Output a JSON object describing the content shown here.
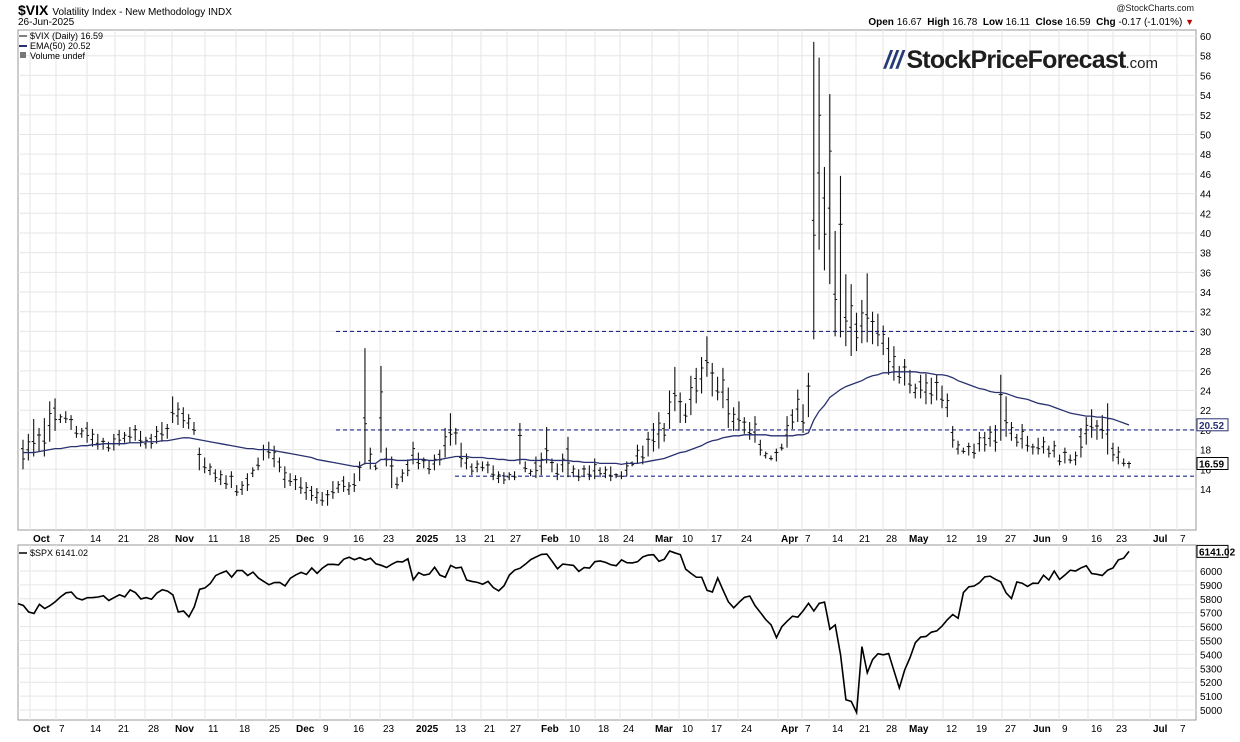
{
  "header": {
    "symbol": "$VIX",
    "name": "Volatility Index - New Methodology",
    "exchange": "INDX",
    "date": "26-Jun-2025",
    "copyright": "@StockCharts.com",
    "open_label": "Open",
    "open": "16.67",
    "high_label": "High",
    "high": "16.78",
    "low_label": "Low",
    "low": "16.11",
    "close_label": "Close",
    "close": "16.59",
    "chg_label": "Chg",
    "chg": "-0.17 (-1.01%)"
  },
  "legend": {
    "vix": "$VIX (Daily) 16.59",
    "ema": "EMA(50) 20.52",
    "volume": "Volume undef",
    "spx": "$SPX 6141.02"
  },
  "logo": {
    "main": "StockPriceForecast",
    "suffix": ".com"
  },
  "colors": {
    "ema": "#2a3170",
    "hline": "#1f2a8a",
    "bars": "#111111",
    "grid": "#e6e6e6",
    "badge_vix": "#000000",
    "badge_ema": "#2a3170",
    "down_arrow": "#c00000"
  },
  "chart_data": [
    {
      "type": "ohlc",
      "title": "$VIX (Daily) 16.59",
      "ylim": [
        12,
        60
      ],
      "yticks": [
        14,
        16,
        18,
        20,
        22,
        24,
        26,
        28,
        30,
        32,
        34,
        36,
        38,
        40,
        42,
        44,
        46,
        48,
        50,
        52,
        54,
        56,
        58,
        60
      ],
      "xtick_labels": [
        "Oct",
        "7",
        "14",
        "21",
        "28",
        "Nov",
        "11",
        "18",
        "25",
        "Dec",
        "9",
        "16",
        "23",
        "2025",
        "13",
        "21",
        "27",
        "Feb",
        "10",
        "18",
        "24",
        "Mar",
        "10",
        "17",
        "24",
        "Apr",
        "7",
        "14",
        "21",
        "28",
        "May",
        "12",
        "19",
        "27",
        "Jun",
        "9",
        "16",
        "23",
        "Jul",
        "7"
      ],
      "last_value": 16.59,
      "ema_value": 20.52,
      "horizontal_lines": [
        30,
        20,
        15.3
      ],
      "series": [
        {
          "name": "$VIX",
          "hi": [
            19.0,
            19.6,
            21.1,
            20.2,
            21.2,
            22.9,
            23.2,
            21.6,
            21.9,
            21.5,
            20.4,
            20.2,
            20.8,
            20.1,
            19.6,
            19.2,
            18.8,
            19.6,
            20.0,
            19.8,
            20.3,
            20.5,
            19.9,
            19.3,
            19.6,
            20.4,
            20.8,
            20.6,
            23.4,
            22.8,
            22.3,
            21.6,
            20.8,
            18.2,
            17.2,
            16.6,
            16.0,
            15.9,
            15.4,
            15.8,
            14.4,
            14.8,
            15.6,
            16.2,
            17.2,
            18.5,
            18.8,
            18.4,
            17.2,
            16.3,
            15.6,
            15.4,
            15.2,
            14.7,
            14.3,
            14.1,
            13.7,
            13.9,
            14.8,
            14.8,
            15.3,
            14.7,
            15.6,
            16.8,
            28.3,
            18.2,
            16.5,
            26.5,
            18.2,
            17.3,
            15.2,
            16.0,
            17.0,
            18.8,
            17.7,
            17.2,
            16.9,
            17.5,
            18.0,
            20.2,
            21.7,
            20.2,
            18.7,
            17.6,
            16.6,
            16.9,
            16.8,
            16.8,
            16.4,
            15.8,
            15.7,
            15.7,
            15.8,
            20.7,
            16.8,
            16.0,
            17.3,
            17.7,
            20.3,
            17.1,
            16.6,
            17.6,
            19.3,
            16.4,
            16.0,
            16.4,
            16.4,
            17.1,
            16.2,
            16.3,
            16.3,
            15.6,
            15.8,
            16.8,
            16.8,
            18.5,
            18.4,
            19.8,
            20.7,
            21.8,
            20.7,
            24.0,
            26.4,
            23.8,
            22.7,
            25.5,
            26.3,
            27.4,
            29.5,
            26.8,
            25.4,
            26.3,
            24.3,
            22.3,
            22.9,
            21.3,
            20.8,
            21.4,
            19.0,
            17.8,
            17.4,
            18.1,
            18.6,
            21.4,
            22.1,
            24.1,
            22.6,
            25.8,
            59.4,
            57.8,
            46.7,
            54.1,
            40.2,
            45.8,
            35.8,
            34.8,
            31.9,
            33.2,
            35.9,
            32.0,
            31.8,
            30.6,
            29.4,
            28.5,
            26.5,
            27.2,
            26.1,
            24.7,
            25.6,
            25.7,
            25.3,
            25.6,
            24.5,
            23.7,
            20.4,
            18.9,
            18.2,
            18.7,
            18.6,
            19.8,
            19.8,
            20.4,
            20.5,
            25.6,
            23.4,
            20.8,
            19.6,
            20.6,
            19.4,
            18.6,
            19.2,
            19.3,
            18.4,
            18.9,
            17.5,
            18.2,
            17.5,
            17.8,
            20.2,
            21.3,
            22.1,
            21.0,
            21.5,
            22.7,
            18.7,
            18.3,
            17.1,
            16.8
          ]
        },
        {
          "name": "$VIX-lo",
          "lo": [
            16.0,
            16.9,
            17.3,
            17.8,
            17.3,
            18.8,
            19.9,
            20.7,
            20.7,
            20.0,
            19.2,
            19.2,
            18.7,
            18.3,
            18.0,
            18.0,
            17.8,
            17.9,
            18.4,
            18.7,
            18.7,
            18.9,
            18.3,
            18.1,
            18.1,
            18.6,
            18.8,
            19.1,
            20.7,
            20.5,
            20.2,
            20.1,
            19.5,
            15.9,
            15.6,
            15.4,
            14.7,
            14.4,
            14.0,
            14.1,
            13.3,
            13.4,
            13.8,
            15.2,
            15.9,
            16.9,
            17.1,
            16.2,
            15.7,
            14.1,
            14.3,
            13.9,
            13.5,
            12.9,
            12.8,
            12.5,
            12.3,
            12.3,
            13.0,
            13.6,
            13.7,
            13.4,
            13.7,
            14.8,
            16.5,
            16.0,
            15.9,
            17.7,
            16.3,
            14.1,
            14.0,
            14.7,
            15.3,
            16.5,
            16.0,
            16.1,
            15.5,
            15.9,
            16.4,
            17.2,
            18.4,
            18.5,
            16.2,
            16.0,
            15.4,
            15.7,
            15.8,
            15.6,
            14.9,
            14.6,
            14.5,
            14.9,
            14.9,
            16.5,
            15.7,
            15.3,
            15.1,
            15.4,
            16.6,
            15.7,
            14.9,
            15.7,
            15.2,
            15.2,
            14.8,
            15.2,
            14.9,
            15.0,
            15.2,
            15.1,
            14.8,
            15.1,
            15.0,
            15.3,
            16.3,
            16.6,
            16.5,
            17.3,
            17.8,
            18.1,
            18.8,
            20.1,
            21.9,
            20.7,
            20.7,
            21.5,
            22.7,
            23.7,
            25.4,
            23.4,
            23.0,
            22.2,
            20.2,
            19.9,
            19.9,
            19.6,
            19.0,
            18.7,
            17.4,
            17.1,
            16.9,
            16.8,
            17.9,
            18.2,
            20.1,
            20.8,
            19.7,
            21.3,
            29.2,
            38.3,
            36.2,
            34.8,
            29.5,
            29.4,
            28.5,
            27.5,
            28.0,
            28.8,
            28.9,
            28.7,
            28.5,
            27.6,
            25.6,
            25.0,
            24.7,
            24.5,
            23.7,
            23.2,
            23.2,
            22.6,
            22.6,
            23.0,
            22.2,
            21.3,
            18.2,
            17.5,
            17.6,
            17.4,
            17.1,
            17.8,
            17.8,
            18.3,
            17.8,
            18.9,
            19.3,
            18.9,
            18.3,
            18.1,
            17.8,
            17.5,
            17.5,
            17.6,
            17.2,
            17.2,
            16.4,
            16.6,
            16.6,
            16.4,
            17.2,
            18.5,
            19.2,
            19.0,
            19.1,
            17.5,
            16.8,
            16.5,
            16.3,
            16.1
          ]
        },
        {
          "name": "EMA(50)",
          "values": [
            17.7,
            17.7,
            17.7,
            17.8,
            17.9,
            18.0,
            18.1,
            18.1,
            18.2,
            18.3,
            18.3,
            18.4,
            18.4,
            18.5,
            18.5,
            18.6,
            18.6,
            18.6,
            18.6,
            18.6,
            18.7,
            18.7,
            18.7,
            18.8,
            18.8,
            18.8,
            18.9,
            18.9,
            19.0,
            19.1,
            19.2,
            19.2,
            19.1,
            19.0,
            18.9,
            18.8,
            18.7,
            18.6,
            18.5,
            18.4,
            18.3,
            18.2,
            18.1,
            18.1,
            18.0,
            18.0,
            18.0,
            17.9,
            17.8,
            17.7,
            17.6,
            17.5,
            17.4,
            17.3,
            17.2,
            17.0,
            16.9,
            16.8,
            16.7,
            16.6,
            16.5,
            16.4,
            16.3,
            16.3,
            16.6,
            16.6,
            16.6,
            17.0,
            17.0,
            17.0,
            16.9,
            16.9,
            16.9,
            17.0,
            17.0,
            17.0,
            16.9,
            16.9,
            17.0,
            17.1,
            17.2,
            17.3,
            17.3,
            17.3,
            17.2,
            17.2,
            17.2,
            17.1,
            17.1,
            17.0,
            17.0,
            16.9,
            16.9,
            17.0,
            17.0,
            16.9,
            16.9,
            16.9,
            17.0,
            16.9,
            16.9,
            16.9,
            16.9,
            16.8,
            16.8,
            16.7,
            16.7,
            16.7,
            16.6,
            16.6,
            16.6,
            16.6,
            16.5,
            16.6,
            16.6,
            16.6,
            16.7,
            16.8,
            16.9,
            17.0,
            17.1,
            17.3,
            17.5,
            17.7,
            17.8,
            18.0,
            18.2,
            18.4,
            18.7,
            18.9,
            19.0,
            19.2,
            19.3,
            19.4,
            19.4,
            19.5,
            19.5,
            19.5,
            19.5,
            19.5,
            19.4,
            19.4,
            19.4,
            19.4,
            19.4,
            19.5,
            19.5,
            19.7,
            21.0,
            21.9,
            22.5,
            23.3,
            23.7,
            24.1,
            24.4,
            24.6,
            24.8,
            25.0,
            25.3,
            25.5,
            25.6,
            25.8,
            25.8,
            25.9,
            25.9,
            25.9,
            25.9,
            25.9,
            25.8,
            25.8,
            25.7,
            25.6,
            25.6,
            25.5,
            25.3,
            25.0,
            24.8,
            24.6,
            24.4,
            24.2,
            24.1,
            23.9,
            23.8,
            23.8,
            23.7,
            23.5,
            23.3,
            23.2,
            23.1,
            22.9,
            22.7,
            22.6,
            22.5,
            22.3,
            22.1,
            21.9,
            21.7,
            21.6,
            21.5,
            21.4,
            21.4,
            21.3,
            21.3,
            21.2,
            21.1,
            20.9,
            20.7,
            20.5
          ]
        }
      ]
    },
    {
      "type": "line",
      "title": "$SPX 6141.02",
      "ylim": [
        4950,
        6150
      ],
      "yticks": [
        5000,
        5100,
        5200,
        5300,
        5400,
        5500,
        5600,
        5700,
        5800,
        5900,
        6000
      ],
      "last_value": 6141.02,
      "series": [
        {
          "name": "$SPX",
          "values": [
            5765,
            5752,
            5705,
            5695,
            5760,
            5730,
            5751,
            5780,
            5815,
            5843,
            5848,
            5805,
            5792,
            5808,
            5809,
            5813,
            5822,
            5788,
            5809,
            5829,
            5814,
            5864,
            5844,
            5799,
            5809,
            5797,
            5841,
            5865,
            5855,
            5828,
            5705,
            5712,
            5670,
            5742,
            5868,
            5878,
            5910,
            5967,
            5985,
            6000,
            5956,
            6003,
            6003,
            5968,
            5992,
            5950,
            5925,
            5901,
            5917,
            5918,
            5893,
            5948,
            5972,
            5990,
            5975,
            6022,
            5983,
            6021,
            6047,
            6048,
            6044,
            6085,
            6099,
            6081,
            6096,
            6078,
            6092,
            6052,
            6041,
            6025,
            6049,
            6068,
            6065,
            6088,
            5936,
            5988,
            5970,
            5978,
            6027,
            5970,
            5955,
            6040,
            6021,
            6027,
            5935,
            5925,
            5918,
            5905,
            5925,
            5880,
            5857,
            5894,
            5971,
            6007,
            6020,
            6049,
            6082,
            6101,
            6119,
            6122,
            6070,
            6016,
            6050,
            6045,
            6040,
            5997,
            6025,
            6021,
            6067,
            6072,
            6062,
            6045,
            6038,
            6080,
            6060,
            6058,
            6067,
            6102,
            6115,
            6117,
            6070,
            6085,
            6144,
            6130,
            6118,
            6013,
            5983,
            5955,
            5955,
            5861,
            5849,
            5950,
            5862,
            5778,
            5735,
            5775,
            5810,
            5820,
            5750,
            5701,
            5650,
            5612,
            5521,
            5599,
            5639,
            5675,
            5668,
            5714,
            5768,
            5712,
            5767,
            5776,
            5581,
            5612,
            5397,
            5074,
            5062,
            4982,
            5456,
            5268,
            5363,
            5405,
            5397,
            5406,
            5282,
            5158,
            5288,
            5376,
            5484,
            5525,
            5529,
            5560,
            5569,
            5604,
            5650,
            5687,
            5660,
            5845,
            5886,
            5892,
            5916,
            5958,
            5963,
            5940,
            5922,
            5842,
            5802,
            5921,
            5912,
            5889,
            5912,
            5911,
            5970,
            5935,
            6000,
            5939,
            5971,
            6006,
            6000,
            6022,
            6038,
            5982,
            5976,
            5968,
            6006,
            6022,
            6080,
            6092,
            6141
          ]
        }
      ]
    }
  ]
}
